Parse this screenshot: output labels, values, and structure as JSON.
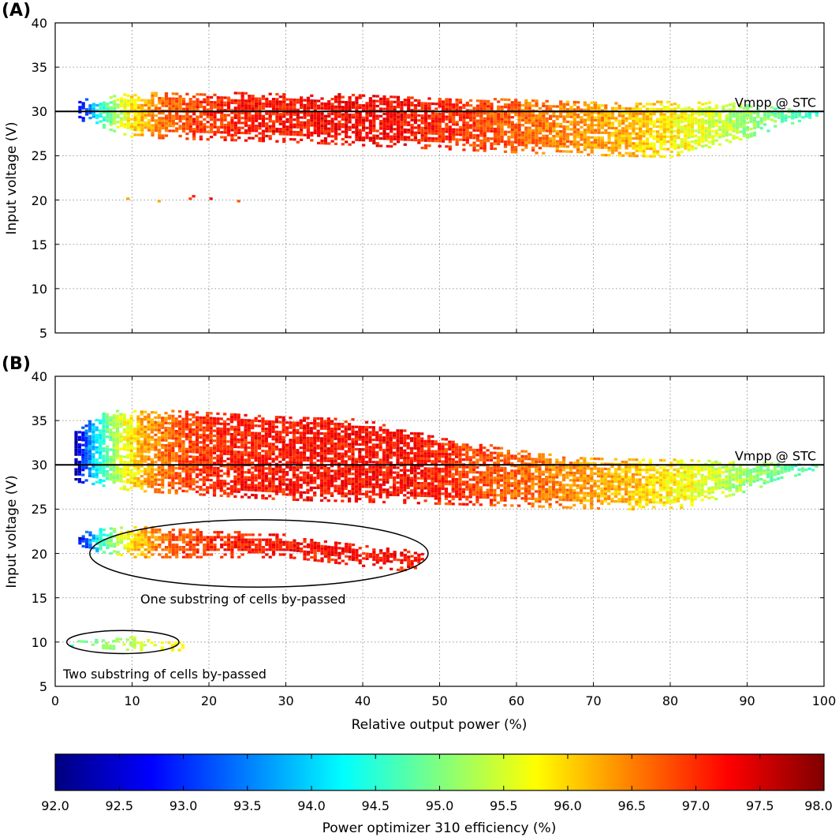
{
  "chart_data": [
    {
      "panel_label": "(A)",
      "type": "heatmap",
      "xlabel": "",
      "ylabel": "Input voltage (V)",
      "xlim": [
        0,
        100
      ],
      "ylim": [
        5,
        40
      ],
      "xticks": [
        0,
        10,
        20,
        30,
        40,
        50,
        60,
        70,
        80,
        90,
        100
      ],
      "yticks": [
        5,
        10,
        15,
        20,
        25,
        30,
        35,
        40
      ],
      "y_tick_labels": [
        "5",
        "10",
        "15",
        "20",
        "25",
        "30",
        "35",
        "40"
      ],
      "grid": true,
      "reference_line": {
        "y": 30,
        "label": "Vmpp @ STC"
      },
      "clusters": [
        {
          "name": "main",
          "x0": 3,
          "x1": 99,
          "y_top": [
            [
              3,
              31.2
            ],
            [
              10,
              32
            ],
            [
              30,
              32
            ],
            [
              50,
              31.5
            ],
            [
              70,
              31
            ],
            [
              85,
              31
            ],
            [
              99,
              30
            ]
          ],
          "y_bot": [
            [
              3,
              29
            ],
            [
              10,
              27
            ],
            [
              30,
              26.5
            ],
            [
              60,
              25.3
            ],
            [
              70,
              25
            ],
            [
              80,
              24.8
            ],
            [
              90,
              27
            ],
            [
              99,
              29.5
            ]
          ]
        },
        {
          "name": "low",
          "x0": 7,
          "x1": 24,
          "y_top": [
            [
              7,
              20.5
            ],
            [
              24,
              20.5
            ]
          ],
          "y_bot": [
            [
              7,
              19.5
            ],
            [
              24,
              19.5
            ]
          ],
          "density": 0.12
        }
      ],
      "annotations": []
    },
    {
      "panel_label": "(B)",
      "type": "heatmap",
      "xlabel": "Relative output power (%)",
      "ylabel": "Input voltage (V)",
      "xlim": [
        0,
        100
      ],
      "ylim": [
        5,
        40
      ],
      "xticks": [
        0,
        10,
        20,
        30,
        40,
        50,
        60,
        70,
        80,
        90,
        100
      ],
      "yticks": [
        5,
        10,
        15,
        20,
        25,
        30,
        35,
        40
      ],
      "x_tick_labels": [
        "0",
        "10",
        "20",
        "30",
        "40",
        "50",
        "60",
        "70",
        "80",
        "90",
        "100"
      ],
      "y_tick_labels": [
        "5",
        "10",
        "15",
        "20",
        "25",
        "30",
        "35",
        "40"
      ],
      "grid": true,
      "reference_line": {
        "y": 30,
        "label": "Vmpp @ STC"
      },
      "clusters": [
        {
          "name": "main",
          "x0": 2.5,
          "x1": 99,
          "y_top": [
            [
              3,
              34
            ],
            [
              6,
              36
            ],
            [
              20,
              36
            ],
            [
              40,
              35
            ],
            [
              50,
              33
            ],
            [
              65,
              31
            ],
            [
              80,
              30.5
            ],
            [
              99,
              30
            ]
          ],
          "y_bot": [
            [
              3,
              28
            ],
            [
              10,
              27
            ],
            [
              30,
              26
            ],
            [
              60,
              25.3
            ],
            [
              70,
              25
            ],
            [
              80,
              24.8
            ],
            [
              90,
              27
            ],
            [
              99,
              29.5
            ]
          ]
        },
        {
          "name": "one-bypassed",
          "x0": 3,
          "x1": 48,
          "y_top": [
            [
              3,
              22.5
            ],
            [
              10,
              23
            ],
            [
              30,
              22
            ],
            [
              45,
              20.5
            ],
            [
              48,
              20
            ]
          ],
          "y_bot": [
            [
              3,
              20.5
            ],
            [
              10,
              19.5
            ],
            [
              30,
              19.5
            ],
            [
              45,
              18
            ],
            [
              48,
              18.5
            ]
          ]
        },
        {
          "name": "two-bypassed",
          "x0": 2,
          "x1": 16.5,
          "y_top": [
            [
              2,
              10
            ],
            [
              10,
              10.5
            ],
            [
              16.5,
              9.8
            ]
          ],
          "y_bot": [
            [
              2,
              9.5
            ],
            [
              10,
              9
            ],
            [
              16.5,
              9
            ]
          ]
        }
      ],
      "annotations": [
        {
          "text": "One substring of cells by-passed",
          "ellipse": {
            "cx": 26.5,
            "cy": 20,
            "rx": 22,
            "ry": 3.8
          }
        },
        {
          "text": "Two substring of cells by-passed",
          "ellipse": {
            "cx": 8.8,
            "cy": 10,
            "rx": 7.3,
            "ry": 1.3
          }
        }
      ]
    },
    {
      "type": "colorbar",
      "label": "Power optimizer 310 efficiency (%)",
      "range": [
        92.0,
        98.0
      ],
      "ticks": [
        "92.0",
        "92.5",
        "93.0",
        "93.5",
        "94.0",
        "94.5",
        "95.0",
        "95.5",
        "96.0",
        "96.5",
        "97.0",
        "97.5",
        "98.0"
      ],
      "colormap": [
        "#00007f",
        "#0000ff",
        "#007fff",
        "#00ffff",
        "#7fff7f",
        "#ffff00",
        "#ff7f00",
        "#ff0000",
        "#7f0000"
      ]
    }
  ]
}
